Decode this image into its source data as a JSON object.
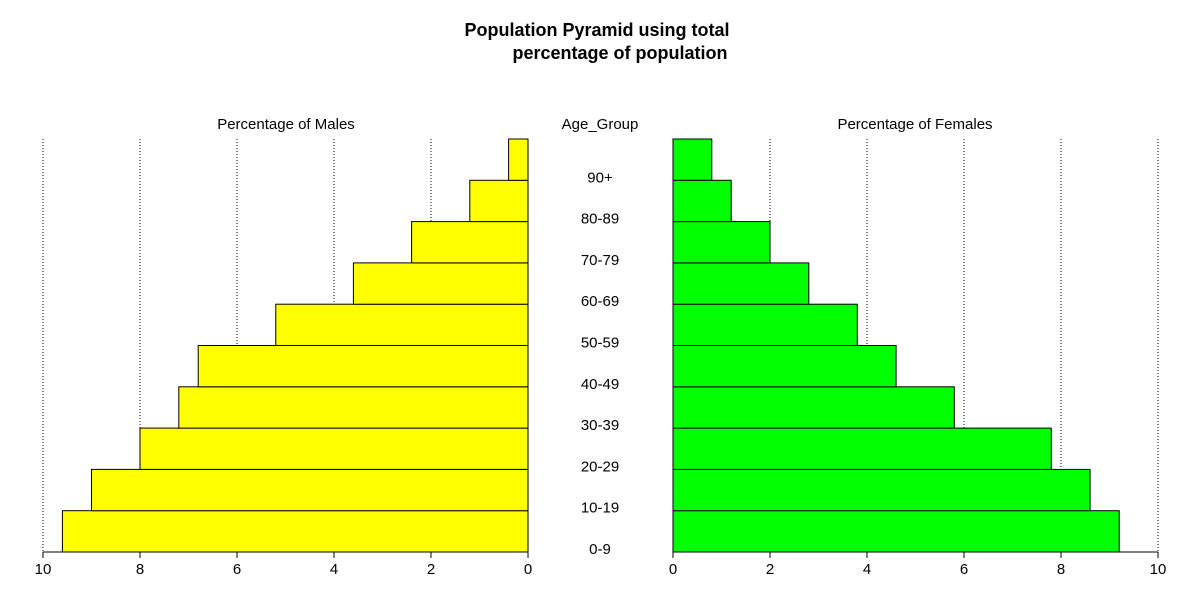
{
  "chart_data": {
    "type": "pyramid",
    "title": [
      "Population Pyramid using total",
      "percentage of population"
    ],
    "center_label": "Age_Group",
    "categories": [
      "0-9",
      "10-19",
      "20-29",
      "30-39",
      "40-49",
      "50-59",
      "60-69",
      "70-79",
      "80-89",
      "90+"
    ],
    "series": [
      {
        "name": "Percentage of Males",
        "color": "#ffff00",
        "values": [
          9.6,
          9.0,
          8.0,
          7.2,
          6.8,
          5.2,
          3.6,
          2.4,
          1.2,
          0.4
        ]
      },
      {
        "name": "Percentage of Females",
        "color": "#00ff00",
        "values": [
          9.2,
          8.6,
          7.8,
          5.8,
          4.6,
          3.8,
          2.8,
          2.0,
          1.2,
          0.8
        ]
      }
    ],
    "xlim": [
      0,
      10
    ],
    "xticks": [
      0,
      2,
      4,
      6,
      8,
      10
    ],
    "grid": true
  }
}
